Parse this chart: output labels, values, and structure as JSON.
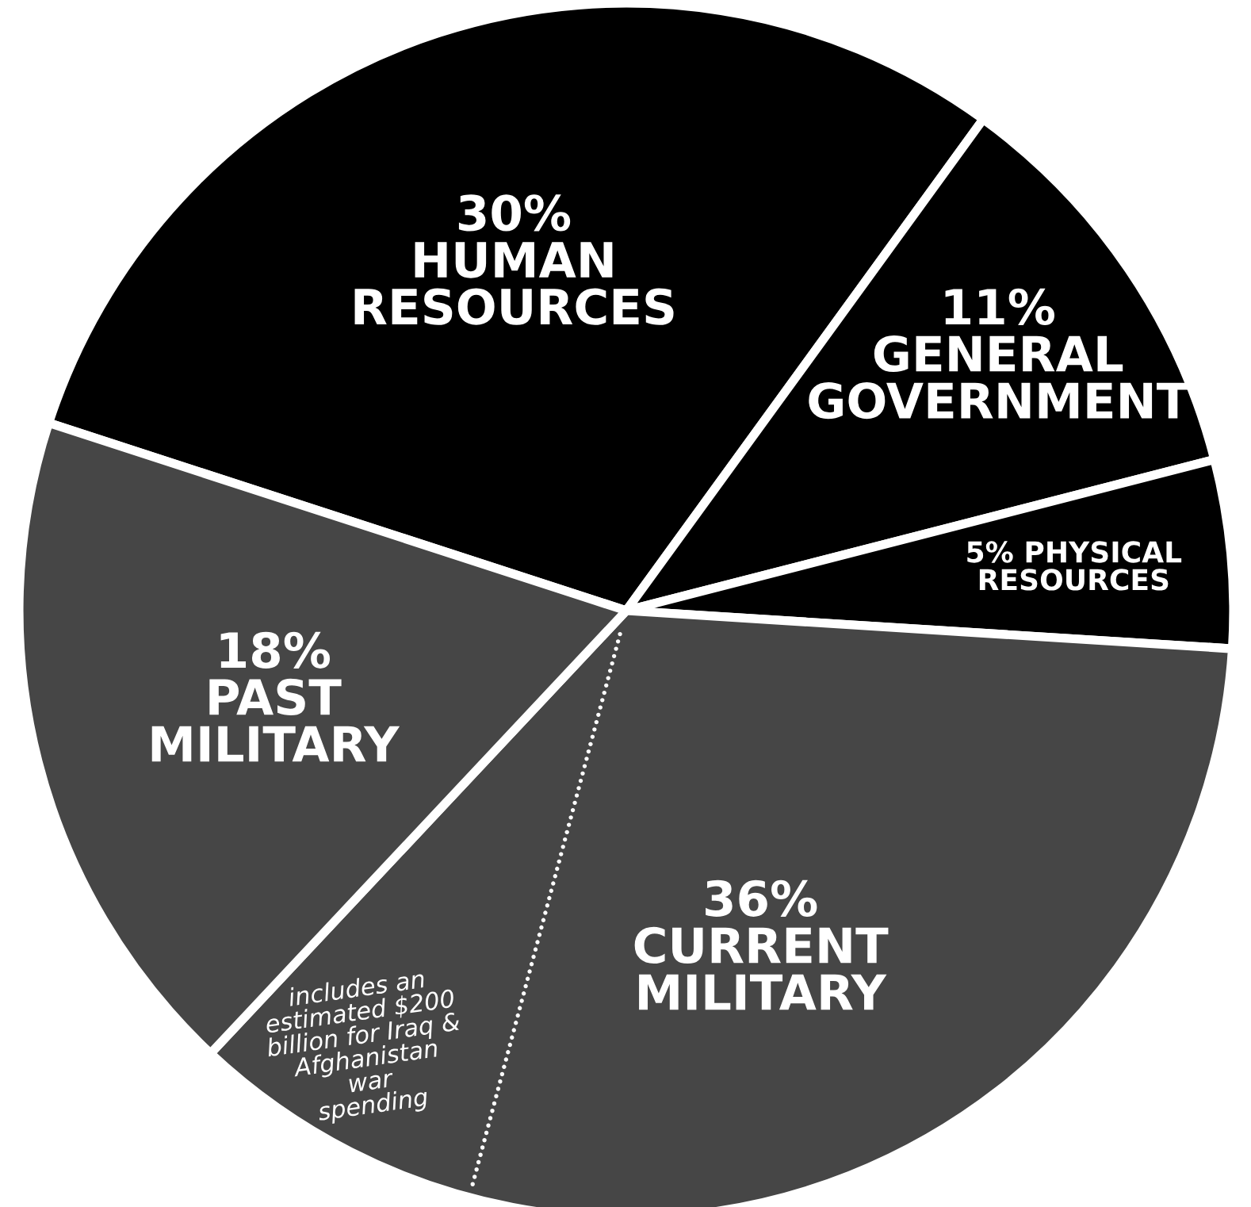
{
  "chart_data": {
    "type": "pie",
    "categories": [
      "HUMAN RESOURCES",
      "GENERAL GOVERNMENT",
      "PHYSICAL RESOURCES",
      "CURRENT MILITARY",
      "PAST MILITARY"
    ],
    "values": [
      30,
      11,
      5,
      36,
      18
    ],
    "colors": [
      "#000000",
      "#000000",
      "#000000",
      "#464646",
      "#464646"
    ],
    "value_labels": [
      "30%",
      "11%",
      "5%",
      "36%",
      "18%"
    ],
    "annotations": [
      "includes an\nestimated $200\nbillion for Iraq &\nAfghanistan\nwar\nspending"
    ]
  }
}
